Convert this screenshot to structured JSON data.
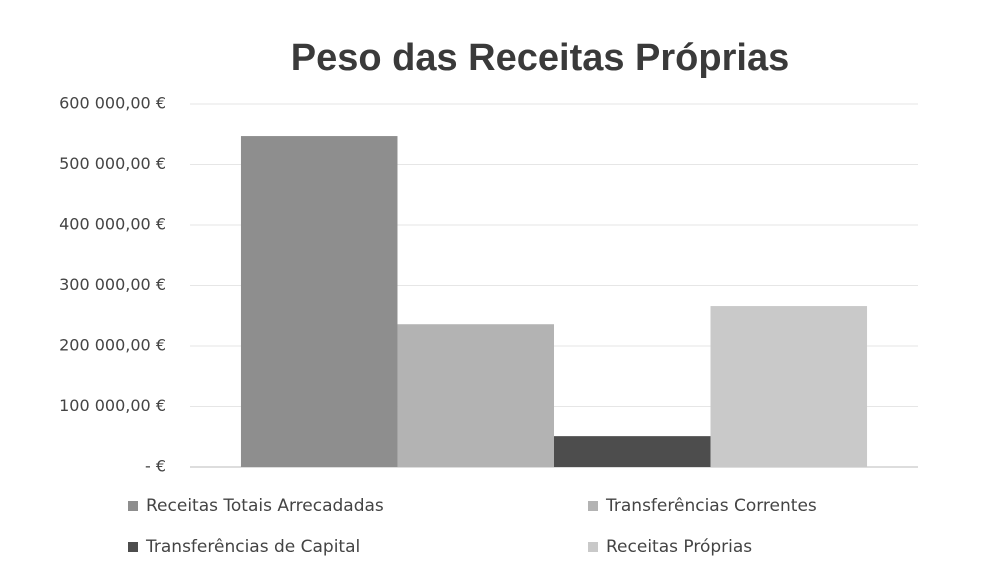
{
  "chart_data": {
    "type": "bar",
    "title": "Peso das Receitas Próprias",
    "categories": [
      null
    ],
    "series": [
      {
        "name": "Receitas Totais Arrecadadas",
        "color": "#8e8e8e",
        "values": [
          547000
        ]
      },
      {
        "name": "Transferências Correntes",
        "color": "#b3b3b3",
        "values": [
          236000
        ]
      },
      {
        "name": "Transferências de Capital",
        "color": "#4d4d4d",
        "values": [
          51000
        ]
      },
      {
        "name": "Receitas Próprias",
        "color": "#c9c9c9",
        "values": [
          266000
        ]
      }
    ],
    "ylim": [
      0,
      600000
    ],
    "yticks": [
      {
        "value": 0,
        "label": "-   €"
      },
      {
        "value": 100000,
        "label": "100 000,00 €"
      },
      {
        "value": 200000,
        "label": "200 000,00 €"
      },
      {
        "value": 300000,
        "label": "300 000,00 €"
      },
      {
        "value": 400000,
        "label": "400 000,00 €"
      },
      {
        "value": 500000,
        "label": "500 000,00 €"
      },
      {
        "value": 600000,
        "label": "600 000,00 €"
      }
    ],
    "grid": true,
    "legend": "bottom"
  }
}
